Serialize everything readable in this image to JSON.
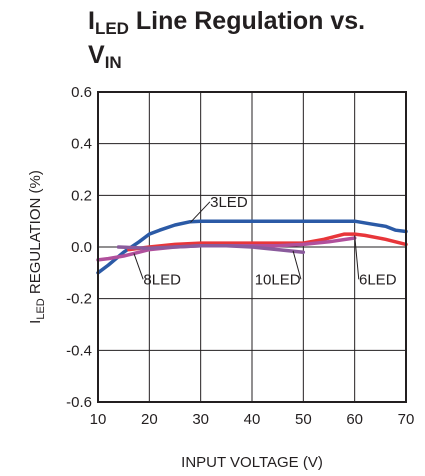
{
  "title": {
    "line1_prefix": "I",
    "line1_sub": "LED",
    "line1_rest": " Line Regulation vs.",
    "line2_prefix": "V",
    "line2_sub": "IN"
  },
  "chart_data": {
    "type": "line",
    "xlabel": "INPUT VOLTAGE (V)",
    "ylabel_prefix": "I",
    "ylabel_sub": "LED",
    "ylabel_rest": " REGULATION (%)",
    "xlim": [
      10,
      70
    ],
    "ylim": [
      -0.6,
      0.6
    ],
    "x_ticks": [
      10,
      20,
      30,
      40,
      50,
      60,
      70
    ],
    "y_ticks": [
      -0.6,
      -0.4,
      -0.2,
      0.0,
      0.2,
      0.4,
      0.6
    ],
    "y_tick_labels": [
      "-0.6",
      "-0.4",
      "-0.2",
      "0.0",
      "0.2",
      "0.4",
      "0.6"
    ],
    "grid": true,
    "series": [
      {
        "name": "3LED",
        "color": "#2b5aa6",
        "x": [
          10,
          12,
          15,
          18,
          20,
          22,
          25,
          28,
          30,
          35,
          40,
          45,
          50,
          55,
          60,
          63,
          66,
          68,
          70
        ],
        "y": [
          -0.1,
          -0.07,
          -0.02,
          0.02,
          0.05,
          0.065,
          0.085,
          0.098,
          0.1,
          0.1,
          0.1,
          0.1,
          0.1,
          0.1,
          0.1,
          0.09,
          0.08,
          0.065,
          0.06
        ]
      },
      {
        "name": "6LED",
        "color": "#e8363a",
        "x": [
          16,
          20,
          25,
          30,
          35,
          40,
          45,
          50,
          54,
          58,
          60,
          62,
          66,
          70
        ],
        "y": [
          -0.01,
          0.0,
          0.01,
          0.015,
          0.015,
          0.015,
          0.015,
          0.015,
          0.03,
          0.05,
          0.05,
          0.045,
          0.03,
          0.01
        ]
      },
      {
        "name": "8LED",
        "color": "#b0509c",
        "x": [
          10,
          12,
          15,
          18,
          20,
          25,
          30,
          35,
          40,
          45,
          50,
          55,
          60
        ],
        "y": [
          -0.05,
          -0.045,
          -0.035,
          -0.02,
          -0.01,
          0.0,
          0.005,
          0.005,
          0.005,
          0.005,
          0.01,
          0.02,
          0.035
        ]
      },
      {
        "name": "10LED",
        "color": "#8a5b9c",
        "x": [
          14,
          20,
          25,
          30,
          35,
          40,
          45,
          50
        ],
        "y": [
          0.0,
          -0.005,
          0.0,
          0.005,
          0.005,
          0.0,
          -0.01,
          -0.02
        ]
      }
    ],
    "annotations": [
      {
        "text": "3LED",
        "series": "3LED",
        "label_x": 35.5,
        "label_y": 0.175,
        "point_x": 28,
        "point_y": 0.095
      },
      {
        "text": "8LED",
        "series": "8LED",
        "label_x": 22.5,
        "label_y": -0.125,
        "point_x": 17,
        "point_y": -0.025
      },
      {
        "text": "10LED",
        "series": "10LED",
        "label_x": 45.0,
        "label_y": -0.125,
        "point_x": 48,
        "point_y": -0.015
      },
      {
        "text": "6LED",
        "series": "6LED",
        "label_x": 64.5,
        "label_y": -0.125,
        "point_x": 60,
        "point_y": 0.045
      }
    ]
  }
}
